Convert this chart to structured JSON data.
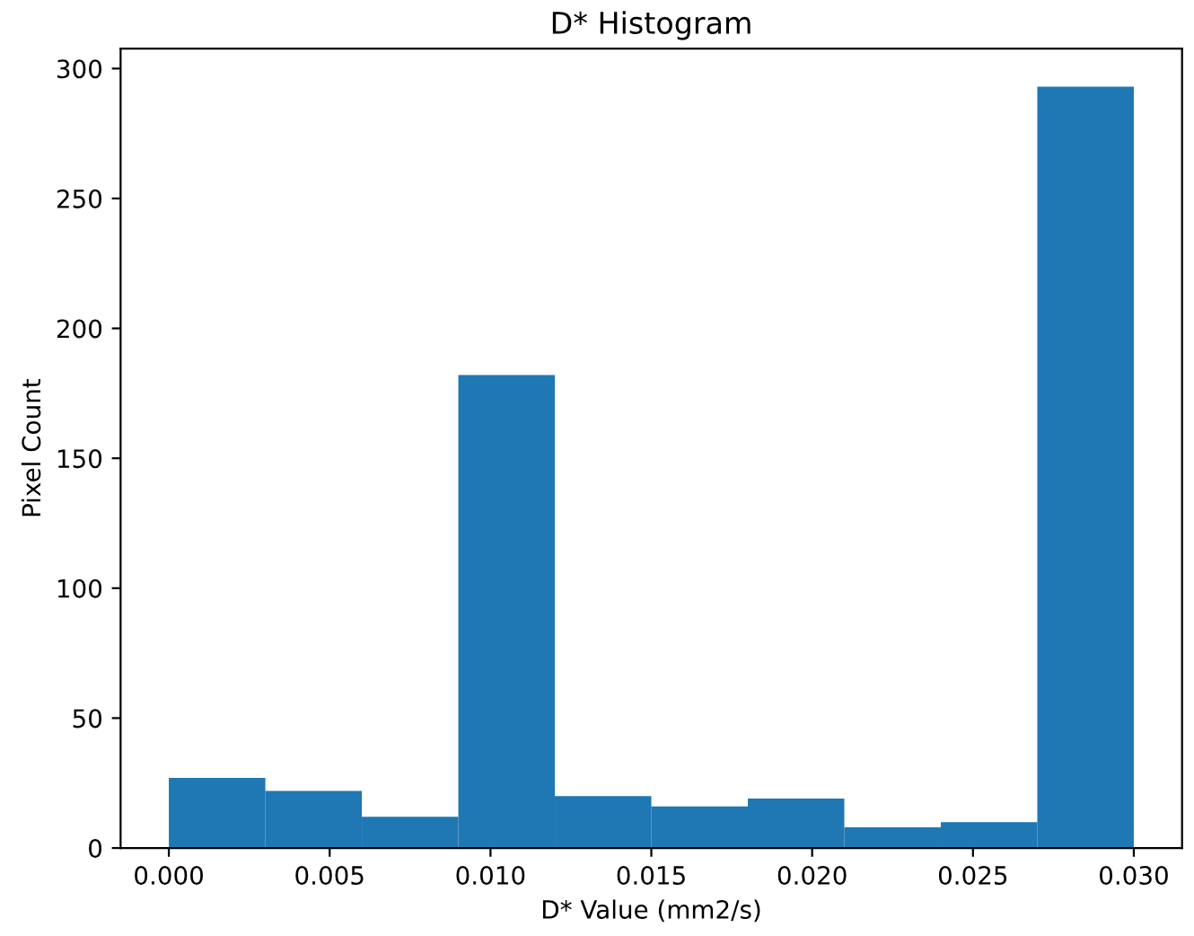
{
  "chart_data": {
    "type": "histogram",
    "title": "D* Histogram",
    "xlabel": "D* Value (mm2/s)",
    "ylabel": "Pixel Count",
    "bins": [
      0.0,
      0.003,
      0.006,
      0.009,
      0.012,
      0.015,
      0.018,
      0.021,
      0.024,
      0.027,
      0.03
    ],
    "values": [
      27,
      22,
      12,
      182,
      20,
      16,
      19,
      8,
      10,
      293
    ],
    "color": "#1f77b4",
    "xlim": [
      -0.0015,
      0.0315
    ],
    "xticks": [
      {
        "value": 0,
        "label": "0.000"
      },
      0.005,
      {
        "value": 0.01,
        "label": "0.010"
      },
      0.015,
      {
        "value": 0.02,
        "label": "0.020"
      },
      0.025,
      {
        "value": 0.03,
        "label": "0.030"
      }
    ],
    "ylim": [
      0,
      307.65
    ],
    "yticks": [
      0,
      50,
      100,
      150,
      200,
      250,
      300
    ],
    "grid": false,
    "legend": false
  }
}
